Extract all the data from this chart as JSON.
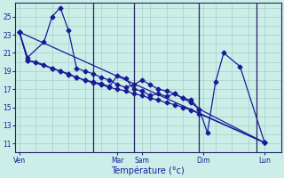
{
  "bg_color": "#cceee8",
  "grid_color": "#aad4cc",
  "line_color": "#1a1a99",
  "xlabel": "Température (°c)",
  "xtick_labels": [
    "Ven",
    "Mar",
    "Sam",
    "Dim",
    "Lun"
  ],
  "xtick_positions": [
    0,
    48,
    60,
    90,
    120
  ],
  "ytick_values": [
    11,
    13,
    15,
    17,
    19,
    21,
    23,
    25
  ],
  "ylim": [
    10.0,
    26.5
  ],
  "xlim": [
    -2,
    128
  ],
  "vline_positions": [
    36,
    56,
    88,
    116
  ],
  "line1_x": [
    0,
    4,
    16,
    20,
    24,
    28,
    32,
    36,
    40,
    44,
    48,
    52,
    56,
    60,
    64,
    68,
    72,
    76,
    80,
    84,
    88,
    92,
    96,
    100,
    108,
    120
  ],
  "line1_y": [
    23.3,
    20.2,
    19.3,
    19.0,
    18.6,
    18.3,
    18.0,
    17.8,
    17.6,
    17.3,
    18.5,
    18.2,
    17.0,
    16.8,
    16.3,
    16.5,
    16.2,
    16.5,
    16.0,
    15.8,
    14.8,
    12.2,
    17.8,
    21.0,
    19.5,
    11.1
  ],
  "line2_x": [
    0,
    4,
    12,
    16,
    20,
    24,
    28,
    32,
    36,
    40,
    44,
    48,
    52,
    56,
    60,
    64,
    68,
    72,
    76,
    80,
    84,
    88,
    120
  ],
  "line2_y": [
    23.3,
    20.5,
    22.2,
    25.0,
    26.0,
    23.5,
    19.3,
    19.0,
    18.7,
    18.3,
    18.0,
    17.5,
    17.2,
    17.5,
    18.0,
    17.5,
    17.0,
    16.8,
    16.5,
    16.0,
    15.5,
    14.8,
    11.1
  ],
  "line3_x": [
    0,
    4,
    8,
    12,
    16,
    20,
    24,
    28,
    32,
    36,
    40,
    44,
    48,
    52,
    56,
    60,
    64,
    68,
    72,
    76,
    80,
    84,
    88,
    120
  ],
  "line3_y": [
    23.3,
    20.2,
    20.0,
    19.7,
    19.3,
    19.0,
    18.7,
    18.3,
    18.0,
    17.7,
    17.5,
    17.2,
    17.0,
    16.8,
    16.5,
    16.3,
    16.0,
    15.8,
    15.5,
    15.3,
    15.0,
    14.7,
    14.3,
    11.1
  ],
  "line4_x": [
    0,
    120
  ],
  "line4_y": [
    23.3,
    11.1
  ]
}
